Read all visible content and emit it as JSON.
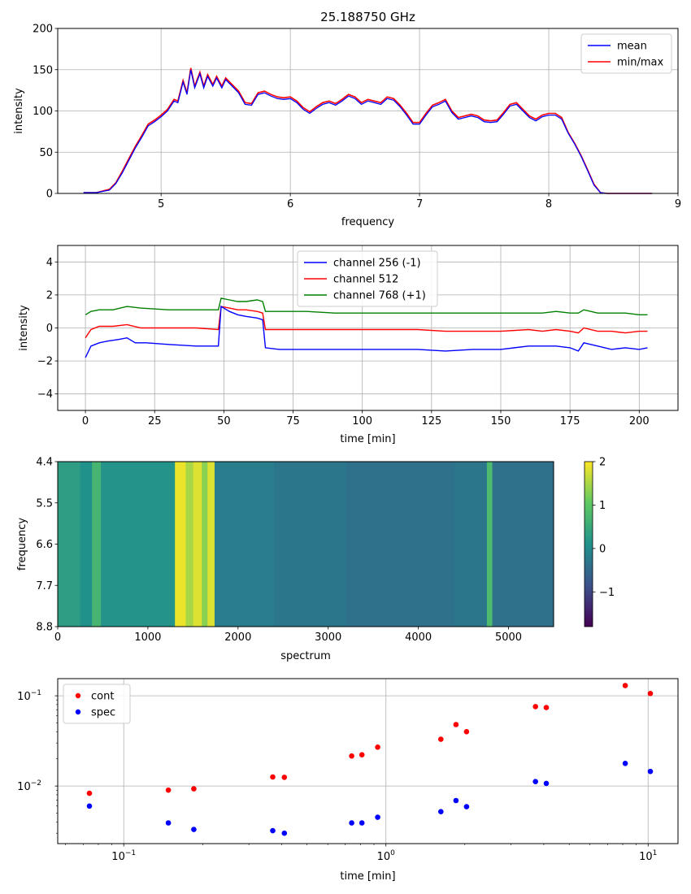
{
  "chart_data": [
    {
      "type": "line",
      "title": "25.188750 GHz",
      "xlabel": "frequency",
      "ylabel": "intensity",
      "xlim": [
        4.2,
        9.0
      ],
      "ylim": [
        0,
        200
      ],
      "xticks": [
        5,
        6,
        7,
        8,
        9
      ],
      "yticks": [
        0,
        50,
        100,
        150,
        200
      ],
      "grid": true,
      "legend_position": "top-right",
      "series": [
        {
          "name": "mean",
          "color": "#0000ff",
          "x": [
            4.4,
            4.5,
            4.6,
            4.65,
            4.7,
            4.75,
            4.8,
            4.85,
            4.9,
            4.95,
            5.0,
            5.05,
            5.1,
            5.13,
            5.17,
            5.2,
            5.23,
            5.26,
            5.3,
            5.33,
            5.36,
            5.4,
            5.43,
            5.47,
            5.5,
            5.55,
            5.6,
            5.65,
            5.7,
            5.75,
            5.8,
            5.85,
            5.9,
            5.95,
            6.0,
            6.05,
            6.1,
            6.15,
            6.2,
            6.25,
            6.3,
            6.35,
            6.4,
            6.45,
            6.5,
            6.55,
            6.6,
            6.65,
            6.7,
            6.75,
            6.8,
            6.85,
            6.9,
            6.95,
            7.0,
            7.05,
            7.1,
            7.15,
            7.2,
            7.25,
            7.3,
            7.35,
            7.4,
            7.45,
            7.5,
            7.55,
            7.6,
            7.65,
            7.7,
            7.75,
            7.8,
            7.85,
            7.9,
            7.95,
            8.0,
            8.05,
            8.1,
            8.15,
            8.2,
            8.25,
            8.3,
            8.35,
            8.4,
            8.45,
            8.5,
            8.55,
            8.6,
            8.65,
            8.7,
            8.75,
            8.78,
            8.8
          ],
          "y": [
            1,
            1,
            4,
            12,
            25,
            40,
            55,
            68,
            82,
            87,
            93,
            100,
            112,
            110,
            135,
            120,
            150,
            128,
            145,
            128,
            142,
            130,
            140,
            128,
            138,
            130,
            122,
            108,
            107,
            120,
            122,
            118,
            115,
            114,
            115,
            110,
            102,
            97,
            103,
            108,
            110,
            107,
            112,
            118,
            115,
            108,
            112,
            110,
            108,
            115,
            113,
            105,
            95,
            84,
            84,
            95,
            105,
            108,
            112,
            98,
            90,
            92,
            94,
            92,
            87,
            86,
            87,
            96,
            106,
            108,
            100,
            92,
            88,
            93,
            95,
            95,
            90,
            73,
            60,
            45,
            28,
            10,
            1,
            0,
            0,
            0,
            0,
            0,
            0,
            0,
            0,
            0
          ]
        },
        {
          "name": "min/max",
          "color": "#ff0000",
          "x": [
            4.4,
            4.5,
            4.6,
            4.65,
            4.7,
            4.75,
            4.8,
            4.85,
            4.9,
            4.95,
            5.0,
            5.05,
            5.1,
            5.13,
            5.17,
            5.2,
            5.23,
            5.26,
            5.3,
            5.33,
            5.36,
            5.4,
            5.43,
            5.47,
            5.5,
            5.55,
            5.6,
            5.65,
            5.7,
            5.75,
            5.8,
            5.85,
            5.9,
            5.95,
            6.0,
            6.05,
            6.1,
            6.15,
            6.2,
            6.25,
            6.3,
            6.35,
            6.4,
            6.45,
            6.5,
            6.55,
            6.6,
            6.65,
            6.7,
            6.75,
            6.8,
            6.85,
            6.9,
            6.95,
            7.0,
            7.05,
            7.1,
            7.15,
            7.2,
            7.25,
            7.3,
            7.35,
            7.4,
            7.45,
            7.5,
            7.55,
            7.6,
            7.65,
            7.7,
            7.75,
            7.8,
            7.85,
            7.9,
            7.95,
            8.0,
            8.05,
            8.1,
            8.15,
            8.2,
            8.25,
            8.3,
            8.35,
            8.4,
            8.45,
            8.5,
            8.55,
            8.6,
            8.65,
            8.7,
            8.75,
            8.78,
            8.8
          ],
          "y": [
            1,
            1,
            5,
            13,
            27,
            42,
            57,
            70,
            84,
            89,
            95,
            102,
            114,
            112,
            137,
            122,
            152,
            130,
            147,
            130,
            144,
            132,
            142,
            130,
            140,
            132,
            124,
            110,
            109,
            122,
            124,
            120,
            117,
            116,
            117,
            112,
            104,
            99,
            105,
            110,
            112,
            109,
            114,
            120,
            117,
            110,
            114,
            112,
            110,
            117,
            115,
            107,
            97,
            86,
            86,
            97,
            107,
            110,
            114,
            100,
            92,
            94,
            96,
            94,
            89,
            88,
            89,
            98,
            108,
            110,
            102,
            94,
            90,
            95,
            97,
            97,
            92,
            74,
            61,
            46,
            29,
            11,
            1,
            0,
            0,
            0,
            0,
            0,
            0,
            0,
            0,
            0
          ]
        }
      ]
    },
    {
      "type": "line",
      "title": "",
      "xlabel": "time [min]",
      "ylabel": "intensity",
      "xlim": [
        -10,
        214
      ],
      "ylim": [
        -5,
        5
      ],
      "xticks": [
        0,
        25,
        50,
        75,
        100,
        125,
        150,
        175,
        200
      ],
      "yticks": [
        -4,
        -2,
        0,
        2,
        4
      ],
      "grid": true,
      "legend_position": "top-center",
      "series": [
        {
          "name": "channel 256 (-1)",
          "color": "#0000ff",
          "x": [
            0,
            2,
            5,
            8,
            12,
            15,
            18,
            22,
            30,
            40,
            48,
            49,
            52,
            55,
            58,
            62,
            64,
            65,
            70,
            80,
            90,
            100,
            110,
            120,
            130,
            140,
            150,
            160,
            165,
            170,
            175,
            178,
            180,
            185,
            190,
            195,
            200,
            203
          ],
          "y": [
            -1.8,
            -1.1,
            -0.9,
            -0.8,
            -0.7,
            -0.6,
            -0.9,
            -0.9,
            -1.0,
            -1.1,
            -1.1,
            1.3,
            1.0,
            0.8,
            0.7,
            0.6,
            0.5,
            -1.2,
            -1.3,
            -1.3,
            -1.3,
            -1.3,
            -1.3,
            -1.3,
            -1.4,
            -1.3,
            -1.3,
            -1.1,
            -1.1,
            -1.1,
            -1.2,
            -1.4,
            -0.9,
            -1.1,
            -1.3,
            -1.2,
            -1.3,
            -1.2
          ]
        },
        {
          "name": "channel 512",
          "color": "#ff0000",
          "x": [
            0,
            2,
            5,
            10,
            15,
            20,
            30,
            40,
            48,
            49,
            52,
            55,
            58,
            62,
            64,
            65,
            70,
            80,
            90,
            100,
            110,
            120,
            130,
            140,
            150,
            160,
            165,
            170,
            175,
            178,
            180,
            185,
            190,
            195,
            200,
            203
          ],
          "y": [
            -0.6,
            -0.1,
            0.1,
            0.1,
            0.2,
            0.0,
            0.0,
            0.0,
            -0.1,
            1.3,
            1.2,
            1.1,
            1.1,
            1.0,
            0.9,
            -0.1,
            -0.1,
            -0.1,
            -0.1,
            -0.1,
            -0.1,
            -0.1,
            -0.2,
            -0.2,
            -0.2,
            -0.1,
            -0.2,
            -0.1,
            -0.2,
            -0.3,
            0.0,
            -0.2,
            -0.2,
            -0.3,
            -0.2,
            -0.2
          ]
        },
        {
          "name": "channel 768 (+1)",
          "color": "#008000",
          "x": [
            0,
            2,
            5,
            10,
            15,
            20,
            30,
            40,
            48,
            49,
            52,
            55,
            58,
            62,
            64,
            65,
            70,
            80,
            90,
            100,
            110,
            120,
            130,
            140,
            150,
            160,
            165,
            170,
            175,
            178,
            180,
            185,
            190,
            195,
            200,
            203
          ],
          "y": [
            0.8,
            1.0,
            1.1,
            1.1,
            1.3,
            1.2,
            1.1,
            1.1,
            1.1,
            1.8,
            1.7,
            1.6,
            1.6,
            1.7,
            1.6,
            1.0,
            1.0,
            1.0,
            0.9,
            0.9,
            0.9,
            0.9,
            0.9,
            0.9,
            0.9,
            0.9,
            0.9,
            1.0,
            0.9,
            0.9,
            1.1,
            0.9,
            0.9,
            0.9,
            0.8,
            0.8
          ]
        }
      ]
    },
    {
      "type": "heatmap",
      "title": "",
      "xlabel": "spectrum",
      "ylabel": "frequency",
      "xlim": [
        0,
        5500
      ],
      "ylim": [
        8.8,
        4.4
      ],
      "xticks": [
        0,
        1000,
        2000,
        3000,
        4000,
        5000
      ],
      "ytick_labels": [
        "4.4",
        "5.5",
        "6.6",
        "7.7",
        "8.8"
      ],
      "colormap": "viridis",
      "colorbar": {
        "min": -1.8,
        "max": 2,
        "ticks": [
          2,
          1,
          0,
          -1
        ],
        "tick_labels": [
          "2",
          "1",
          "0",
          "−1"
        ]
      },
      "base_value": -0.1,
      "bands": [
        {
          "x_start": 0,
          "x_end": 250,
          "value": 0.3
        },
        {
          "x_start": 250,
          "x_end": 380,
          "value": 0.1
        },
        {
          "x_start": 380,
          "x_end": 480,
          "value": 0.7
        },
        {
          "x_start": 480,
          "x_end": 1300,
          "value": 0.15
        },
        {
          "x_start": 1300,
          "x_end": 1420,
          "value": 1.9
        },
        {
          "x_start": 1420,
          "x_end": 1500,
          "value": 1.5
        },
        {
          "x_start": 1500,
          "x_end": 1600,
          "value": 1.8
        },
        {
          "x_start": 1600,
          "x_end": 1660,
          "value": 1.3
        },
        {
          "x_start": 1660,
          "x_end": 1740,
          "value": 1.8
        },
        {
          "x_start": 1740,
          "x_end": 2400,
          "value": -0.2
        },
        {
          "x_start": 2400,
          "x_end": 3200,
          "value": -0.3
        },
        {
          "x_start": 3200,
          "x_end": 4400,
          "value": -0.4
        },
        {
          "x_start": 4400,
          "x_end": 4760,
          "value": -0.3
        },
        {
          "x_start": 4760,
          "x_end": 4820,
          "value": 0.8
        },
        {
          "x_start": 4820,
          "x_end": 5500,
          "value": -0.4
        }
      ]
    },
    {
      "type": "scatter",
      "title": "",
      "xlabel": "time [min]",
      "ylabel": "",
      "xscale": "log",
      "yscale": "log",
      "xlim": [
        0.056,
        13
      ],
      "ylim": [
        0.0023,
        0.155
      ],
      "xticks": [
        0.1,
        1,
        10
      ],
      "yticks": [
        0.01,
        0.1
      ],
      "grid": true,
      "legend_position": "top-left",
      "series": [
        {
          "name": "cont",
          "color": "#ff0000",
          "x": [
            0.074,
            0.148,
            0.185,
            0.37,
            0.41,
            0.74,
            0.81,
            0.93,
            1.62,
            1.85,
            2.03,
            3.72,
            4.09,
            8.18,
            10.2
          ],
          "y": [
            0.0083,
            0.009,
            0.0093,
            0.0126,
            0.0125,
            0.0215,
            0.0222,
            0.027,
            0.033,
            0.048,
            0.04,
            0.076,
            0.074,
            0.13,
            0.106
          ]
        },
        {
          "name": "spec",
          "color": "#0000ff",
          "x": [
            0.074,
            0.148,
            0.185,
            0.37,
            0.41,
            0.74,
            0.81,
            0.93,
            1.62,
            1.85,
            2.03,
            3.72,
            4.09,
            8.18,
            10.2
          ],
          "y": [
            0.006,
            0.0039,
            0.0033,
            0.0032,
            0.003,
            0.0039,
            0.0039,
            0.0045,
            0.0052,
            0.0069,
            0.0059,
            0.0112,
            0.0107,
            0.0178,
            0.0145
          ]
        }
      ]
    }
  ]
}
